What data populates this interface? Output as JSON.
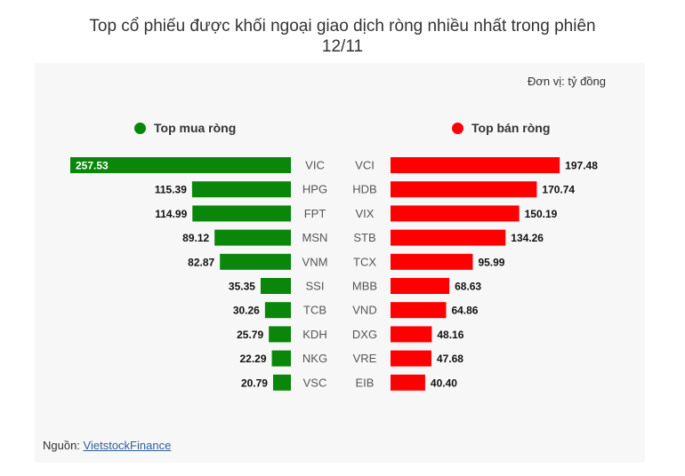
{
  "title_line1": "Top cổ phiếu được khối ngoại giao dịch ròng nhiều nhất trong phiên",
  "title_line2": "12/11",
  "unit": "Đơn vị: tỷ đồng",
  "source_prefix": "Nguồn: ",
  "source_link": "VietstockFinance",
  "colors": {
    "buy": "#0a870a",
    "sell": "#ff0000",
    "panel": "#f7f7f7"
  },
  "chart_data": [
    {
      "type": "bar",
      "title": "Top mua ròng",
      "orientation": "horizontal",
      "direction": "leftward",
      "legend_position": "top",
      "categories": [
        "VIC",
        "HPG",
        "FPT",
        "MSN",
        "VNM",
        "SSI",
        "TCB",
        "KDH",
        "NKG",
        "VSC"
      ],
      "values": [
        257.53,
        115.39,
        114.99,
        89.12,
        82.87,
        35.35,
        30.26,
        25.79,
        22.29,
        20.79
      ],
      "xlim": [
        0,
        257.53
      ]
    },
    {
      "type": "bar",
      "title": "Top bán ròng",
      "orientation": "horizontal",
      "direction": "rightward",
      "legend_position": "top",
      "categories": [
        "VCI",
        "HDB",
        "VIX",
        "STB",
        "TCX",
        "MBB",
        "VND",
        "DXG",
        "VRE",
        "EIB"
      ],
      "values": [
        197.48,
        170.74,
        150.19,
        134.26,
        95.99,
        68.63,
        64.86,
        48.16,
        47.68,
        40.4
      ],
      "xlim": [
        0,
        257.53
      ]
    }
  ]
}
